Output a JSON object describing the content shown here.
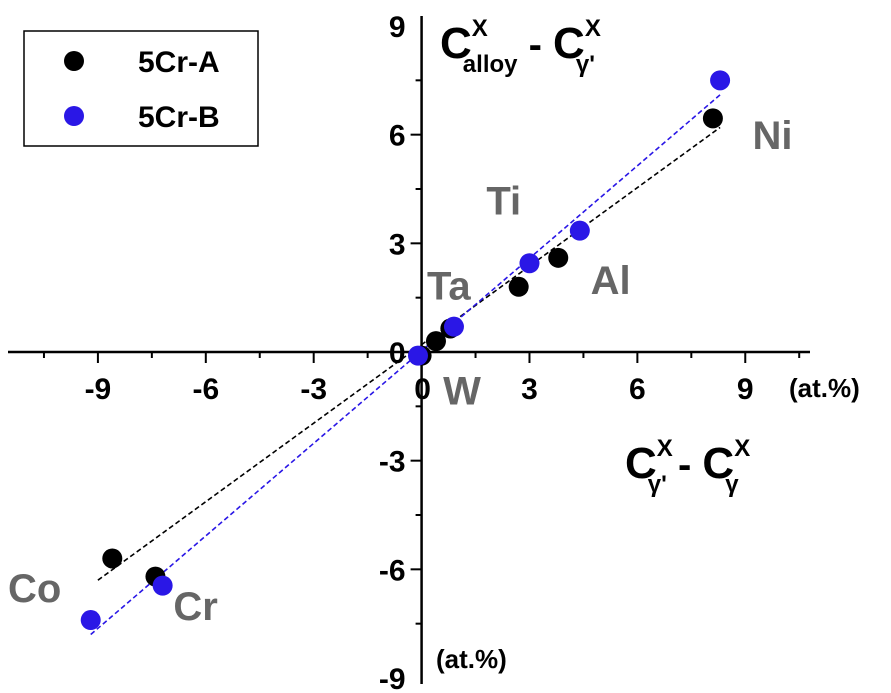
{
  "chart_data": {
    "type": "scatter",
    "xlim": [
      -11.5,
      10.8
    ],
    "ylim": [
      -9,
      9
    ],
    "x_ticks": [
      -9,
      -6,
      -3,
      0,
      3,
      6,
      9
    ],
    "y_ticks": [
      -9,
      -6,
      -3,
      0,
      3,
      6,
      9
    ],
    "x_unit": "(at.%)",
    "y_unit": "(at.%)",
    "y_title": {
      "main": "C",
      "sup": "X",
      "sub": "alloy",
      "minus": " - ",
      "main2": "C",
      "sup2": "X",
      "sub2": "γ'"
    },
    "x_title": {
      "main": "C",
      "sup": "X",
      "sub": "γ'",
      "minus": " - ",
      "main2": "C",
      "sup2": "X",
      "sub2": "γ"
    },
    "legend": {
      "position": "top-left"
    },
    "series": [
      {
        "name": "5Cr-A",
        "color": "#000000",
        "points": [
          {
            "x": -8.6,
            "y": -5.7
          },
          {
            "x": -7.4,
            "y": -6.2
          },
          {
            "x": 0.0,
            "y": -0.1
          },
          {
            "x": 0.4,
            "y": 0.3
          },
          {
            "x": 0.8,
            "y": 0.65
          },
          {
            "x": 2.7,
            "y": 1.8
          },
          {
            "x": 3.8,
            "y": 2.6
          },
          {
            "x": 8.1,
            "y": 6.45
          }
        ],
        "fit": [
          [
            -9.0,
            -6.3
          ],
          [
            8.3,
            6.2
          ]
        ]
      },
      {
        "name": "5Cr-B",
        "color": "#2a17e6",
        "points": [
          {
            "x": -9.2,
            "y": -7.4
          },
          {
            "x": -7.2,
            "y": -6.45
          },
          {
            "x": -0.1,
            "y": -0.1
          },
          {
            "x": 0.9,
            "y": 0.7
          },
          {
            "x": 3.0,
            "y": 2.45
          },
          {
            "x": 4.4,
            "y": 3.35
          },
          {
            "x": 8.3,
            "y": 7.5
          }
        ],
        "fit": [
          [
            -9.2,
            -7.8
          ],
          [
            8.3,
            7.1
          ]
        ]
      }
    ],
    "annotations": [
      {
        "text": "Ni",
        "x": 9.2,
        "y": 5.6
      },
      {
        "text": "Ti",
        "x": 1.8,
        "y": 3.8
      },
      {
        "text": "Al",
        "x": 4.7,
        "y": 1.6
      },
      {
        "text": "Ta",
        "x": 0.15,
        "y": 1.45
      },
      {
        "text": "W",
        "x": 0.6,
        "y": -1.45
      },
      {
        "text": "Co",
        "x": -11.5,
        "y": -6.9
      },
      {
        "text": "Cr",
        "x": -6.9,
        "y": -7.4
      }
    ]
  }
}
